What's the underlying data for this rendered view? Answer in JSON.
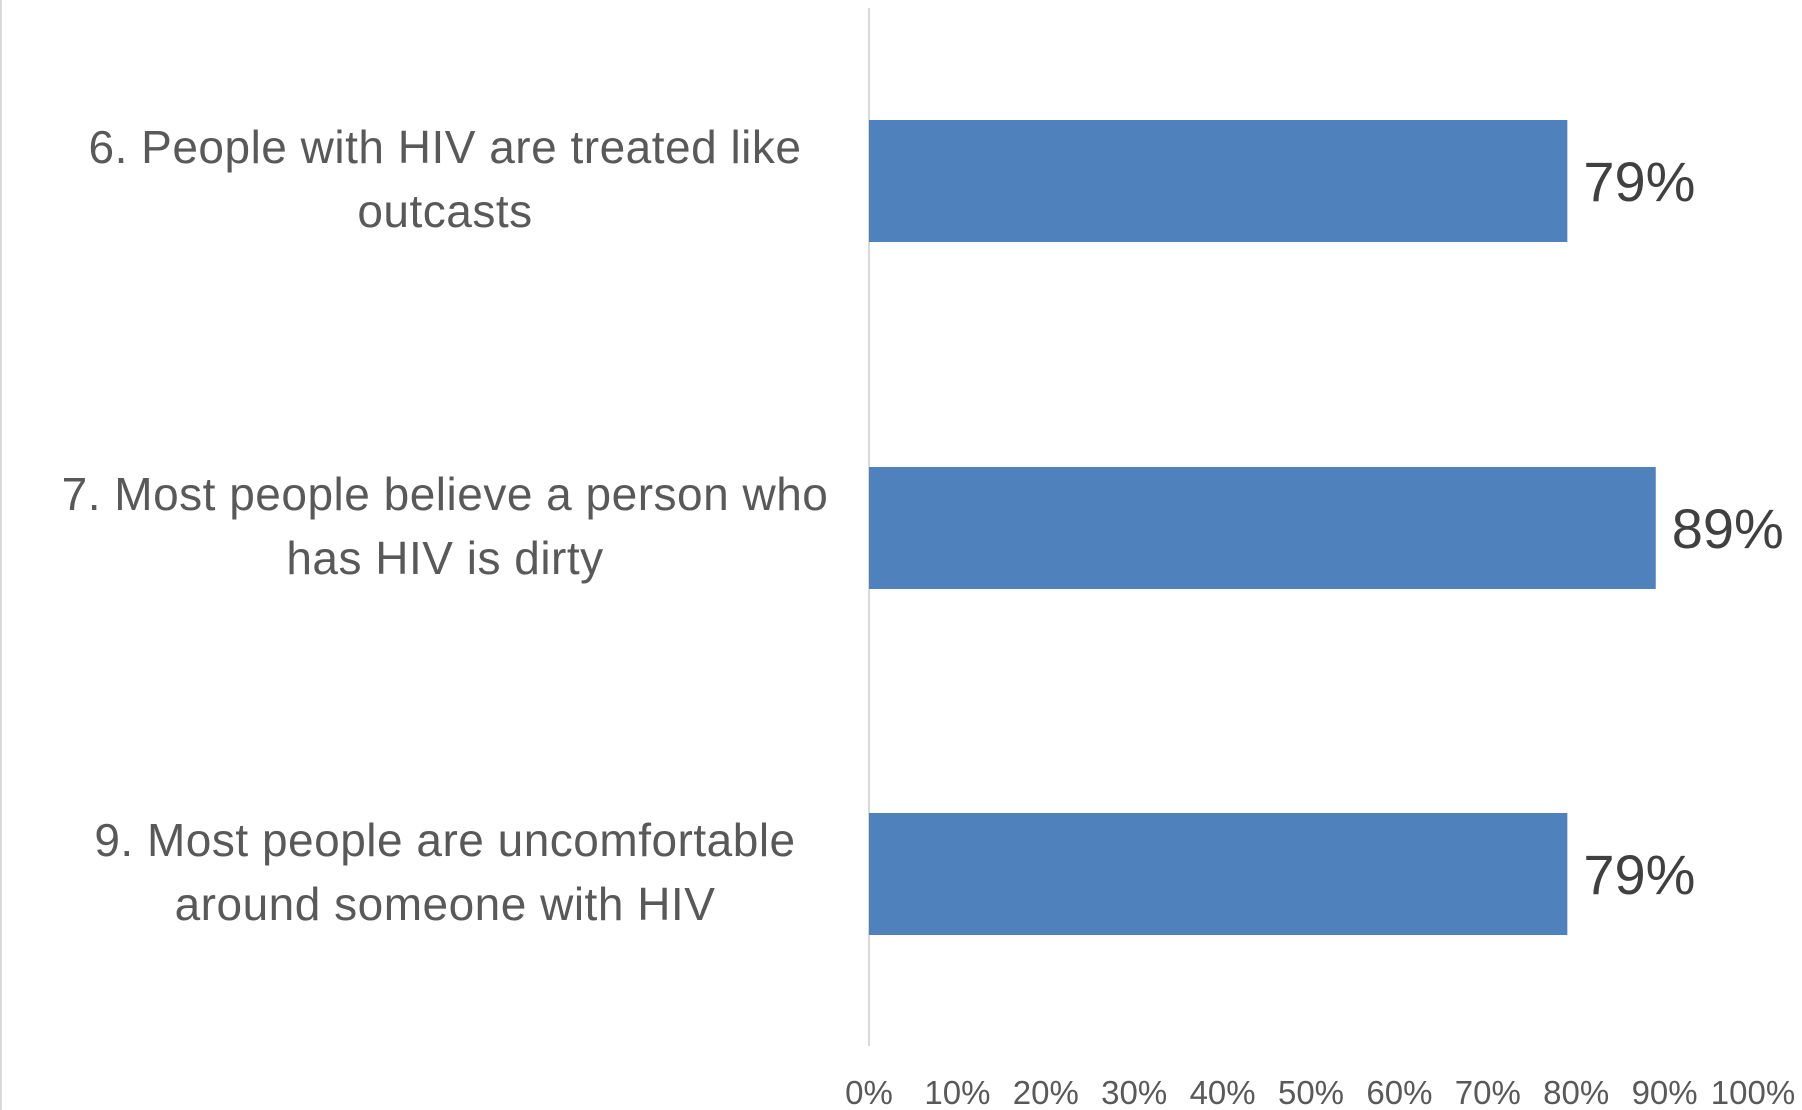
{
  "chart_data": {
    "type": "bar",
    "orientation": "horizontal",
    "categories": [
      "6. People with HIV are treated like outcasts",
      "7. Most people believe a person who has HIV is dirty",
      "9. Most people are uncomfortable around someone with HIV"
    ],
    "category_lines": [
      [
        "6. People with HIV are treated like",
        "outcasts"
      ],
      [
        "7. Most people believe a person who",
        "has HIV is dirty"
      ],
      [
        "9. Most people are uncomfortable",
        "around someone with HIV"
      ]
    ],
    "values": [
      79,
      89,
      79
    ],
    "data_labels": [
      "79%",
      "89%",
      "79%"
    ],
    "xlim": [
      0,
      100
    ],
    "x_ticks": [
      "0%",
      "10%",
      "20%",
      "30%",
      "40%",
      "50%",
      "60%",
      "70%",
      "80%",
      "90%",
      "100%"
    ],
    "bar_color": "#4f81bd",
    "text_color": "#595959",
    "data_label_color": "#404040",
    "axis_line_color": "#d9d9d9",
    "grid": false,
    "legend": "none"
  }
}
